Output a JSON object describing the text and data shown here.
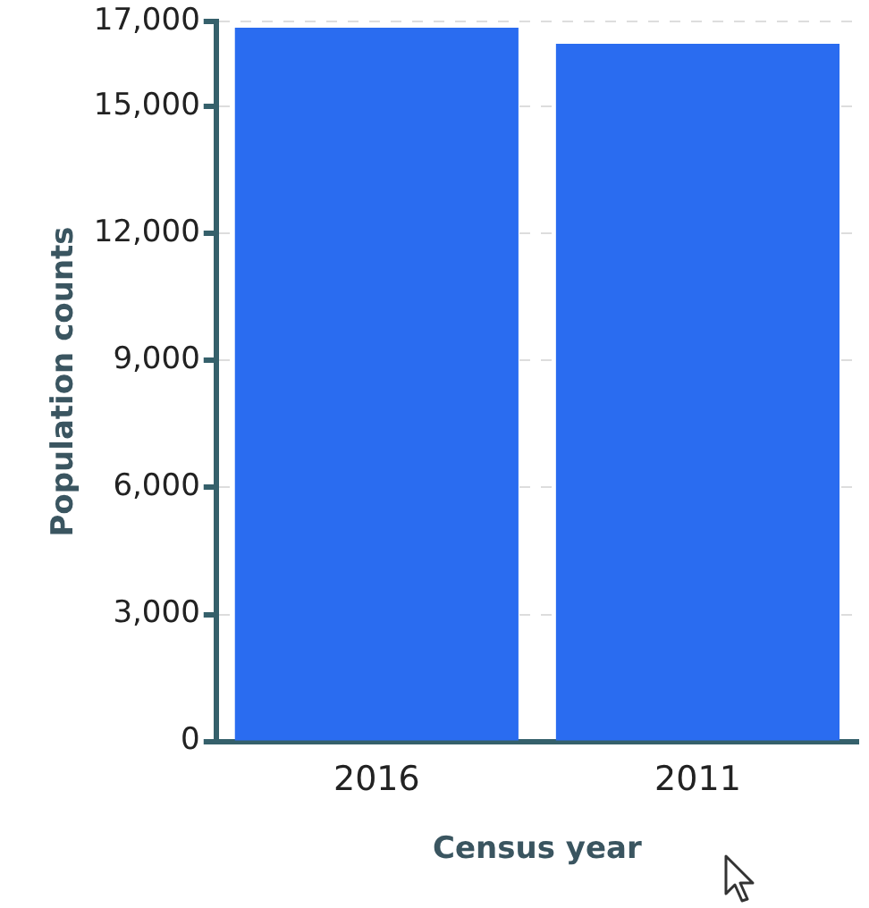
{
  "chart_data": {
    "type": "bar",
    "xlabel": "Census year",
    "ylabel": "Population counts",
    "categories": [
      "2016",
      "2011"
    ],
    "values": [
      16860,
      16480
    ],
    "color": "#2a6cf0",
    "ylim": [
      0,
      17000
    ],
    "yticks": [
      0,
      {
        "value": 3000,
        "label": "3,000"
      },
      {
        "value": 6000,
        "label": "6,000"
      },
      {
        "value": 9000,
        "label": "9,000"
      },
      {
        "value": 12000,
        "label": "12,000"
      },
      {
        "value": 15000,
        "label": "15,000"
      },
      {
        "value": 17000,
        "label": "17,000"
      }
    ],
    "grid": "y"
  }
}
